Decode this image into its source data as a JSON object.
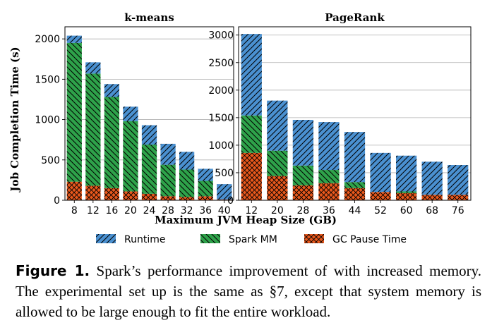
{
  "figure": {
    "xlabel": "Maximum JVM Heap Size (GB)",
    "ylabel": "Job Completion Time (s)"
  },
  "legend": [
    {
      "key": "runtime",
      "label": "Runtime",
      "color": "#4a90d0",
      "hatch": "diagonal"
    },
    {
      "key": "spark_mm",
      "label": "Spark MM",
      "color": "#2ea24a",
      "hatch": "back-diagonal"
    },
    {
      "key": "gc",
      "label": "GC Pause Time",
      "color": "#e8581c",
      "hatch": "cross"
    }
  ],
  "caption": {
    "label": "Figure 1.",
    "text": " Spark’s performance improvement of with increased memory. The experimental set up is the same as §7, except that system memory is allowed to be large enough to fit the entire workload."
  },
  "chart_data": [
    {
      "type": "bar",
      "stacked": true,
      "title": "k-means",
      "categories": [
        "8",
        "12",
        "16",
        "20",
        "24",
        "28",
        "32",
        "36",
        "40"
      ],
      "ylim": [
        0,
        2150
      ],
      "yticks": [
        0,
        500,
        1000,
        1500,
        2000
      ],
      "series": [
        {
          "name": "GC Pause Time",
          "values": [
            230,
            180,
            150,
            110,
            80,
            50,
            40,
            50,
            10
          ]
        },
        {
          "name": "Spark MM",
          "values": [
            1720,
            1390,
            1130,
            870,
            610,
            390,
            340,
            190,
            0
          ]
        },
        {
          "name": "Runtime",
          "values": [
            90,
            140,
            160,
            180,
            240,
            260,
            220,
            150,
            190
          ]
        }
      ]
    },
    {
      "type": "bar",
      "stacked": true,
      "title": "PageRank",
      "categories": [
        "12",
        "20",
        "28",
        "36",
        "44",
        "52",
        "60",
        "68",
        "76"
      ],
      "ylim": [
        0,
        3150
      ],
      "yticks": [
        0,
        500,
        1000,
        1500,
        2000,
        2500,
        3000
      ],
      "series": [
        {
          "name": "GC Pause Time",
          "values": [
            860,
            440,
            270,
            310,
            220,
            150,
            130,
            100,
            100
          ]
        },
        {
          "name": "Spark MM",
          "values": [
            680,
            460,
            360,
            240,
            110,
            0,
            30,
            0,
            0
          ]
        },
        {
          "name": "Runtime",
          "values": [
            1480,
            910,
            830,
            870,
            910,
            710,
            650,
            600,
            540
          ]
        }
      ]
    }
  ]
}
